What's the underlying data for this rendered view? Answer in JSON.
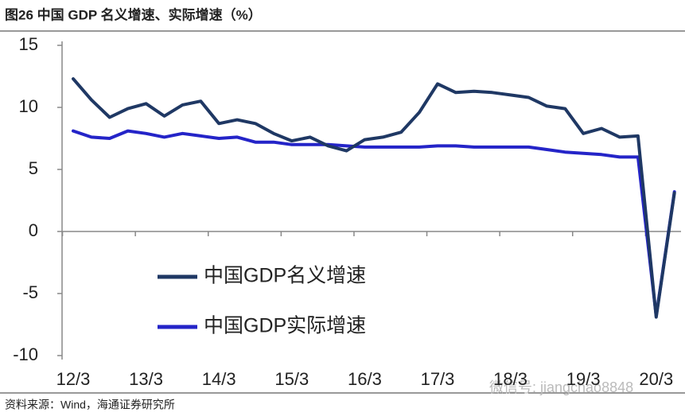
{
  "chart_data": {
    "type": "line",
    "title": "图26 中国 GDP 名义增速、实际增速（%）",
    "source": "资料来源：Wind，海通证券研究所",
    "watermark": "微信号: jiangchao8848",
    "categories": [
      "12/3",
      null,
      null,
      null,
      "13/3",
      null,
      null,
      null,
      "14/3",
      null,
      null,
      null,
      "15/3",
      null,
      null,
      null,
      "16/3",
      null,
      null,
      null,
      "17/3",
      null,
      null,
      null,
      "18/3",
      null,
      null,
      null,
      "19/3",
      null,
      null,
      null,
      "20/3",
      null
    ],
    "series": [
      {
        "name": "中国GDP名义增速",
        "color": "#1f3864",
        "values": [
          12.3,
          10.6,
          9.2,
          9.9,
          10.3,
          9.3,
          10.2,
          10.5,
          8.7,
          9.0,
          8.7,
          7.9,
          7.3,
          7.6,
          6.9,
          6.5,
          7.4,
          7.6,
          8.0,
          9.6,
          11.9,
          11.2,
          11.3,
          11.2,
          11.0,
          10.8,
          10.1,
          9.9,
          7.9,
          8.3,
          7.6,
          7.7,
          -6.9,
          3.1
        ]
      },
      {
        "name": "中国GDP实际增速",
        "color": "#2424c8",
        "values": [
          8.1,
          7.6,
          7.5,
          8.1,
          7.9,
          7.6,
          7.9,
          7.7,
          7.5,
          7.6,
          7.2,
          7.2,
          7.0,
          7.0,
          7.0,
          6.9,
          6.8,
          6.8,
          6.8,
          6.8,
          6.9,
          6.9,
          6.8,
          6.8,
          6.8,
          6.8,
          6.6,
          6.4,
          6.3,
          6.2,
          6.0,
          6.0,
          -6.8,
          3.2
        ]
      }
    ],
    "ylim": [
      -10,
      15
    ],
    "yticks": [
      15,
      10,
      5,
      0,
      -5,
      -10
    ]
  }
}
